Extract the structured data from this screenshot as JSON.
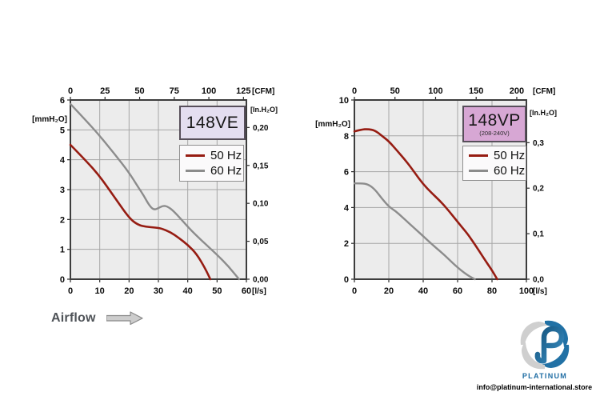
{
  "page": {
    "background": "#ffffff"
  },
  "airflow": {
    "label": "Airflow"
  },
  "footer": {
    "brand": "PLATINUM",
    "email": "info@platinum-international.store",
    "brand_blue": "#1e6ca3",
    "logo_blue": "#2171a5",
    "logo_gray": "#cfcfcf"
  },
  "chart_data": [
    {
      "type": "line",
      "title": "148VE",
      "subtitle": "",
      "title_bg": "#e4def0",
      "plot_bg": "#ececec",
      "grid": true,
      "legend_position": "top-right",
      "x_bottom": {
        "label": "[l/s]",
        "ticks": [
          0,
          10,
          20,
          30,
          40,
          50,
          60
        ],
        "max": 60
      },
      "x_top": {
        "label": "[CFM]",
        "ticks": [
          {
            "label": "0",
            "lps": 0
          },
          {
            "label": "25",
            "lps": 11.8
          },
          {
            "label": "50",
            "lps": 23.6
          },
          {
            "label": "75",
            "lps": 35.4
          },
          {
            "label": "100",
            "lps": 47.2
          },
          {
            "label": "125",
            "lps": 59.0
          }
        ]
      },
      "y_left": {
        "label": "[mmH₂O]",
        "ticks": [
          0,
          1,
          2,
          3,
          4,
          5,
          6
        ],
        "max": 6
      },
      "y_right": {
        "label": "[In.H₂O]",
        "ticks": [
          {
            "label": "0,00",
            "mm": 0
          },
          {
            "label": "0,05",
            "mm": 1.27
          },
          {
            "label": "0,10",
            "mm": 2.54
          },
          {
            "label": "0,15",
            "mm": 3.81
          },
          {
            "label": "0,20",
            "mm": 5.08
          }
        ]
      },
      "series": [
        {
          "name": "50 Hz",
          "color": "#961c12",
          "points": [
            [
              0,
              4.5
            ],
            [
              5,
              4.0
            ],
            [
              10,
              3.45
            ],
            [
              15,
              2.75
            ],
            [
              20,
              2.05
            ],
            [
              23,
              1.82
            ],
            [
              26,
              1.75
            ],
            [
              29,
              1.73
            ],
            [
              31,
              1.7
            ],
            [
              34,
              1.58
            ],
            [
              37,
              1.38
            ],
            [
              40,
              1.15
            ],
            [
              43,
              0.85
            ],
            [
              46,
              0.35
            ],
            [
              47.7,
              0
            ]
          ]
        },
        {
          "name": "60 Hz",
          "color": "#8c8c8c",
          "points": [
            [
              0,
              5.87
            ],
            [
              5,
              5.35
            ],
            [
              10,
              4.8
            ],
            [
              15,
              4.2
            ],
            [
              20,
              3.57
            ],
            [
              23,
              3.1
            ],
            [
              25,
              2.8
            ],
            [
              27,
              2.45
            ],
            [
              28.5,
              2.32
            ],
            [
              30,
              2.38
            ],
            [
              31.5,
              2.46
            ],
            [
              33,
              2.44
            ],
            [
              35,
              2.3
            ],
            [
              38,
              1.98
            ],
            [
              41,
              1.65
            ],
            [
              45,
              1.27
            ],
            [
              50,
              0.82
            ],
            [
              54,
              0.42
            ],
            [
              57.5,
              0
            ]
          ]
        }
      ]
    },
    {
      "type": "line",
      "title": "148VP",
      "subtitle": "(208-240V)",
      "title_bg": "#d7a7d4",
      "plot_bg": "#ececec",
      "grid": true,
      "legend_position": "top-right",
      "x_bottom": {
        "label": "[l/s]",
        "ticks": [
          0,
          20,
          40,
          60,
          80,
          100
        ],
        "max": 100
      },
      "x_top": {
        "label": "[CFM]",
        "ticks": [
          {
            "label": "0",
            "lps": 0
          },
          {
            "label": "50",
            "lps": 23.6
          },
          {
            "label": "100",
            "lps": 47.2
          },
          {
            "label": "150",
            "lps": 70.8
          },
          {
            "label": "200",
            "lps": 94.4
          }
        ]
      },
      "y_left": {
        "label": "[mmH₂O]",
        "ticks": [
          0,
          2,
          4,
          6,
          8,
          10
        ],
        "max": 10
      },
      "y_right": {
        "label": "[In.H₂O]",
        "ticks": [
          {
            "label": "0,0",
            "mm": 0
          },
          {
            "label": "0,1",
            "mm": 2.54
          },
          {
            "label": "0,2",
            "mm": 5.08
          },
          {
            "label": "0,3",
            "mm": 7.62
          }
        ]
      },
      "series": [
        {
          "name": "50 Hz",
          "color": "#961c12",
          "points": [
            [
              0,
              8.25
            ],
            [
              4,
              8.35
            ],
            [
              8,
              8.38
            ],
            [
              12,
              8.3
            ],
            [
              16,
              8.0
            ],
            [
              20,
              7.7
            ],
            [
              25,
              7.15
            ],
            [
              30,
              6.6
            ],
            [
              35,
              5.95
            ],
            [
              40,
              5.3
            ],
            [
              45,
              4.8
            ],
            [
              50,
              4.35
            ],
            [
              55,
              3.8
            ],
            [
              60,
              3.2
            ],
            [
              63,
              2.85
            ],
            [
              66,
              2.5
            ],
            [
              70,
              1.95
            ],
            [
              75,
              1.2
            ],
            [
              80,
              0.5
            ],
            [
              83,
              0
            ]
          ]
        },
        {
          "name": "60 Hz",
          "color": "#8c8c8c",
          "points": [
            [
              0,
              5.35
            ],
            [
              4,
              5.35
            ],
            [
              8,
              5.3
            ],
            [
              12,
              5.0
            ],
            [
              16,
              4.5
            ],
            [
              20,
              4.05
            ],
            [
              24,
              3.8
            ],
            [
              28,
              3.45
            ],
            [
              32,
              3.1
            ],
            [
              36,
              2.75
            ],
            [
              40,
              2.4
            ],
            [
              45,
              1.95
            ],
            [
              50,
              1.55
            ],
            [
              55,
              1.1
            ],
            [
              60,
              0.65
            ],
            [
              64,
              0.35
            ],
            [
              67,
              0.15
            ],
            [
              70,
              0
            ]
          ]
        }
      ]
    }
  ]
}
